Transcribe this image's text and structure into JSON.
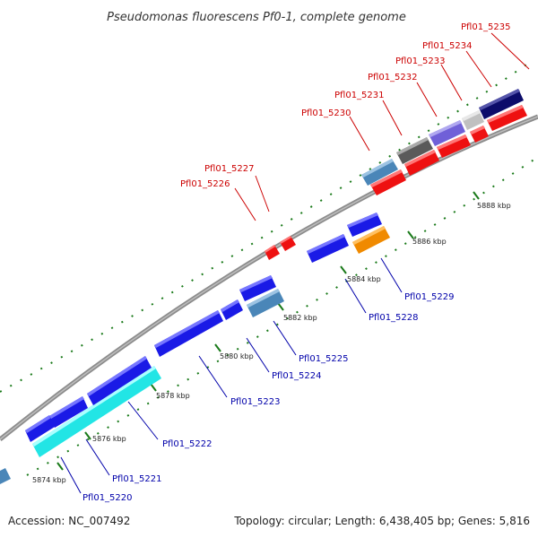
{
  "title": "Pseudomonas fluorescens Pf0-1, complete genome",
  "footer": {
    "accession": "Accession: NC_007492",
    "topology": "Topology: circular; Length: 6,438,405 bp; Genes: 5,816"
  },
  "colors": {
    "red": "#ee1111",
    "blue": "#1a1ae6",
    "cyan": "#22e5e5",
    "steelblue": "#4a86b8",
    "orange": "#f08a00",
    "darkgray": "#5a5a5a",
    "slateblue": "#7060d8",
    "lightgray": "#c0c0c0",
    "navy": "#0c0c6a",
    "backbone": "#8c8c8c",
    "tick": "#1a7a1a"
  },
  "ticks": [
    "5874 kbp",
    "5876 kbp",
    "5878 kbp",
    "5880 kbp",
    "5882 kbp",
    "5884 kbp",
    "5886 kbp",
    "5888 kbp"
  ],
  "top_labels": [
    "Pfl01_5226",
    "Pfl01_5227",
    "Pfl01_5230",
    "Pfl01_5231",
    "Pfl01_5232",
    "Pfl01_5233",
    "Pfl01_5234",
    "Pfl01_5235"
  ],
  "bottom_labels": [
    "Pfl01_5220",
    "Pfl01_5221",
    "Pfl01_5222",
    "Pfl01_5223",
    "Pfl01_5224",
    "Pfl01_5225",
    "Pfl01_5228",
    "Pfl01_5229"
  ]
}
